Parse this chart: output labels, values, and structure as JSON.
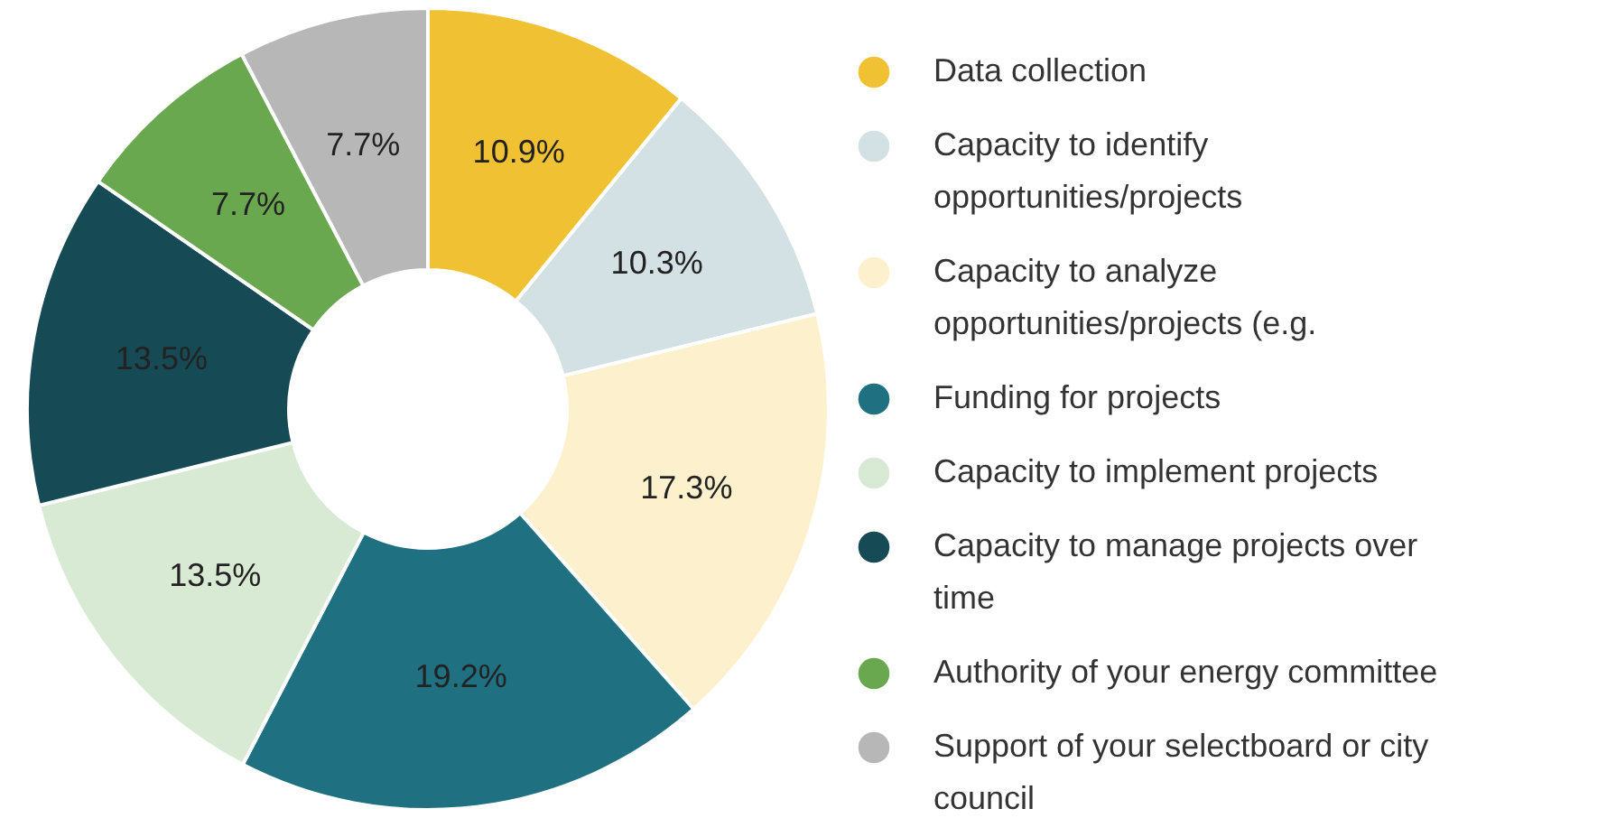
{
  "chart_data": {
    "type": "donut",
    "categories": [
      "Data collection",
      "Capacity to identify opportunities/projects",
      "Capacity to analyze opportunities/projects (e.g.",
      "Funding for projects",
      "Capacity to implement projects",
      "Capacity to manage projects over time",
      "Authority of your energy committee",
      "Support of your selectboard or city council"
    ],
    "values": [
      10.9,
      10.3,
      17.3,
      19.2,
      13.5,
      13.5,
      7.7,
      7.7
    ],
    "value_labels": [
      "10.9%",
      "10.3%",
      "17.3%",
      "19.2%",
      "13.5%",
      "13.5%",
      "7.7%",
      "7.7%"
    ],
    "colors": [
      "#f0c233",
      "#d3e1e4",
      "#fdf0cc",
      "#1f7080",
      "#d9ead4",
      "#164a55",
      "#6aa84f",
      "#b7b7b7"
    ],
    "legend": "right"
  }
}
